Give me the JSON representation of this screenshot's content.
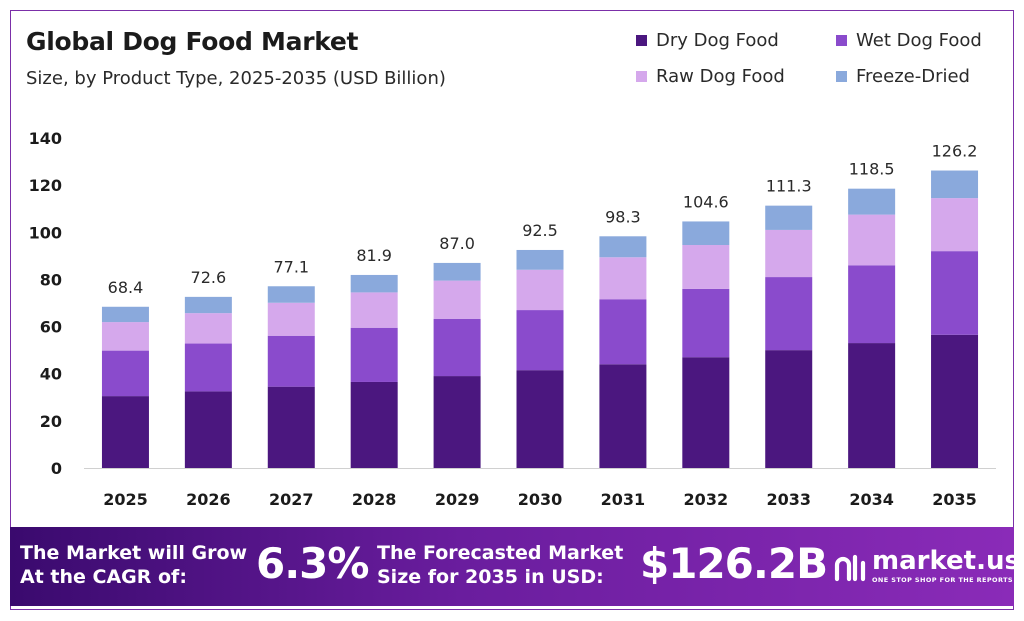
{
  "header": {
    "title": "Global Dog Food Market",
    "subtitle": "Size, by Product Type, 2025-2035 (USD Billion)"
  },
  "legend": [
    {
      "label": "Dry Dog Food",
      "color": "#4b177f"
    },
    {
      "label": "Wet Dog Food",
      "color": "#8a4bcc"
    },
    {
      "label": "Raw Dog Food",
      "color": "#d5a8ec"
    },
    {
      "label": "Freeze-Dried",
      "color": "#8aa9dc"
    }
  ],
  "chart_data": {
    "type": "bar",
    "stacked": true,
    "title": "Global Dog Food Market",
    "subtitle": "Size, by Product Type, 2025-2035 (USD Billion)",
    "categories": [
      "2025",
      "2026",
      "2027",
      "2028",
      "2029",
      "2030",
      "2031",
      "2032",
      "2033",
      "2034",
      "2035"
    ],
    "series": [
      {
        "name": "Dry Dog Food",
        "color": "#4b177f",
        "values": [
          30.5,
          32.5,
          34.5,
          36.5,
          39.0,
          41.5,
          44.0,
          47.0,
          50.0,
          53.0,
          56.5
        ]
      },
      {
        "name": "Wet Dog Food",
        "color": "#8a4bcc",
        "values": [
          19.3,
          20.3,
          21.6,
          23.0,
          24.3,
          25.5,
          27.6,
          29.0,
          31.0,
          33.0,
          35.5
        ]
      },
      {
        "name": "Raw Dog Food",
        "color": "#d5a8ec",
        "values": [
          12.1,
          12.9,
          14.0,
          15.0,
          16.2,
          17.1,
          17.8,
          18.6,
          20.0,
          21.5,
          22.5
        ]
      },
      {
        "name": "Freeze-Dried",
        "color": "#8aa9dc",
        "values": [
          6.5,
          6.9,
          7.0,
          7.4,
          7.5,
          8.4,
          8.9,
          10.0,
          10.3,
          11.0,
          11.7
        ]
      }
    ],
    "totals": [
      "68.4",
      "72.6",
      "77.1",
      "81.9",
      "87.0",
      "92.5",
      "98.3",
      "104.6",
      "111.3",
      "118.5",
      "126.2"
    ],
    "ylim": [
      0,
      140
    ],
    "yticks": [
      0,
      20,
      40,
      60,
      80,
      100,
      120,
      140
    ],
    "grid": false,
    "legend_position": "top-right"
  },
  "footer": {
    "cagr_label_line1": "The Market will Grow",
    "cagr_label_line2": "At the CAGR of:",
    "cagr_value": "6.3%",
    "forecast_label_line1": "The Forecasted Market",
    "forecast_label_line2": "Size for 2035 in USD:",
    "forecast_value": "$126.2B",
    "logo_name": "market.us",
    "logo_tagline": "ONE STOP SHOP FOR THE REPORTS"
  }
}
